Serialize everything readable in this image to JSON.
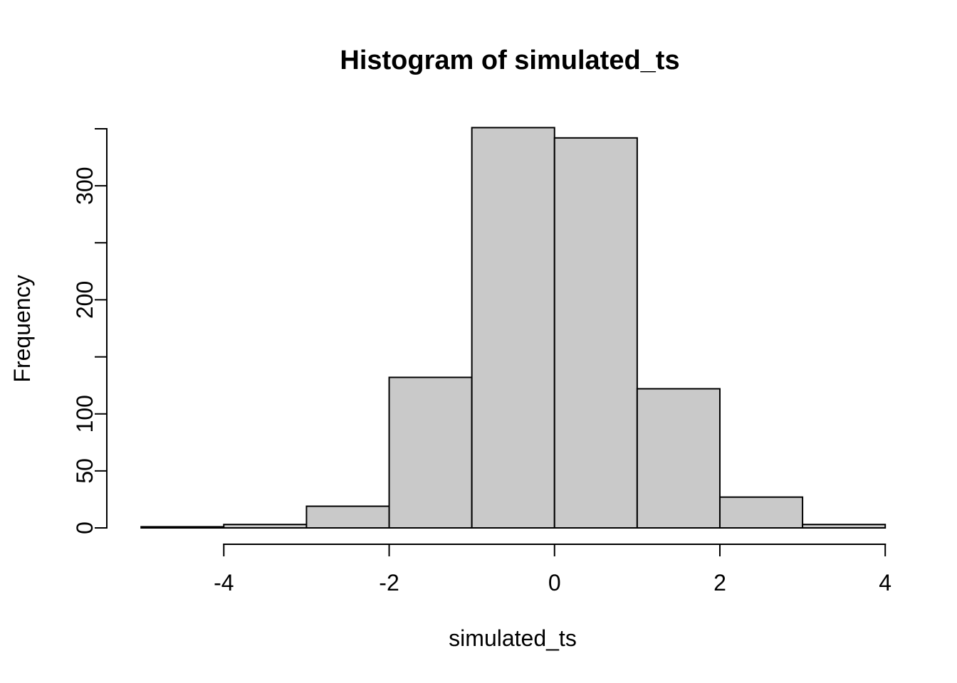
{
  "chart_data": {
    "type": "bar",
    "subtype": "histogram",
    "title": "Histogram of simulated_ts",
    "xlabel": "simulated_ts",
    "ylabel": "Frequency",
    "bin_breaks": [
      -5,
      -4,
      -3,
      -2,
      -1,
      0,
      1,
      2,
      3,
      4
    ],
    "counts": [
      1,
      3,
      19,
      132,
      351,
      342,
      122,
      27,
      3
    ],
    "xlim": [
      -5,
      4
    ],
    "ylim": [
      0,
      350
    ],
    "x_ticks": [
      {
        "value": -4,
        "label": "-4"
      },
      {
        "value": -2,
        "label": "-2"
      },
      {
        "value": 0,
        "label": "0"
      },
      {
        "value": 2,
        "label": "2"
      },
      {
        "value": 4,
        "label": "4"
      }
    ],
    "y_ticks": [
      {
        "value": 0,
        "label": "0"
      },
      {
        "value": 50,
        "label": "50"
      },
      {
        "value": 100,
        "label": "100"
      },
      {
        "value": 150,
        "label": ""
      },
      {
        "value": 200,
        "label": "200"
      },
      {
        "value": 250,
        "label": ""
      },
      {
        "value": 300,
        "label": "300"
      },
      {
        "value": 350,
        "label": ""
      }
    ],
    "legend": "none",
    "grid": "off",
    "colors": {
      "bar_fill": "#C9C9C9",
      "bar_border": "#000000",
      "axis": "#000000",
      "text": "#000000",
      "background": "#FFFFFF"
    }
  }
}
